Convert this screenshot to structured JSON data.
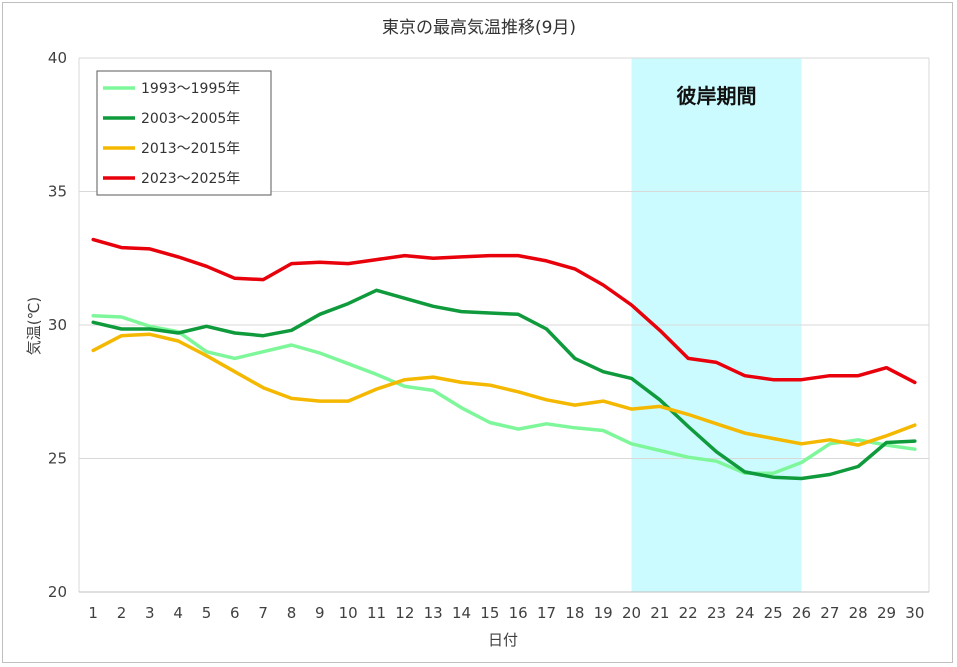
{
  "chart_data": {
    "type": "line",
    "title": "東京の最高気温推移(9月)",
    "xlabel": "日付",
    "ylabel": "気温(℃)",
    "x": [
      1,
      2,
      3,
      4,
      5,
      6,
      7,
      8,
      9,
      10,
      11,
      12,
      13,
      14,
      15,
      16,
      17,
      18,
      19,
      20,
      21,
      22,
      23,
      24,
      25,
      26,
      27,
      28,
      29,
      30
    ],
    "ylim": [
      20,
      40
    ],
    "yticks": [
      20,
      25,
      30,
      35,
      40
    ],
    "grid": true,
    "legend_position": "top-left",
    "highlight": {
      "label": "彼岸期間",
      "x_from": 20,
      "x_to": 26,
      "color": "#ccfbff"
    },
    "series": [
      {
        "name": "1993～1995年",
        "color": "#7ef79a",
        "values": [
          30.35,
          30.3,
          29.95,
          29.75,
          29.0,
          28.75,
          29.0,
          29.25,
          28.95,
          28.55,
          28.15,
          27.7,
          27.55,
          26.9,
          26.35,
          26.1,
          26.3,
          26.15,
          26.05,
          25.55,
          25.3,
          25.05,
          24.9,
          24.45,
          24.45,
          24.85,
          25.55,
          25.7,
          25.5,
          25.35
        ]
      },
      {
        "name": "2003～2005年",
        "color": "#0f9a3c",
        "values": [
          30.1,
          29.85,
          29.85,
          29.7,
          29.95,
          29.7,
          29.6,
          29.8,
          30.4,
          30.8,
          31.3,
          31.0,
          30.7,
          30.5,
          30.45,
          30.4,
          29.85,
          28.75,
          28.25,
          28.0,
          27.2,
          26.2,
          25.25,
          24.5,
          24.3,
          24.25,
          24.4,
          24.7,
          25.6,
          25.65
        ]
      },
      {
        "name": "2013～2015年",
        "color": "#f5b800",
        "values": [
          29.05,
          29.6,
          29.65,
          29.4,
          28.85,
          28.25,
          27.65,
          27.25,
          27.15,
          27.15,
          27.6,
          27.95,
          28.05,
          27.85,
          27.75,
          27.5,
          27.2,
          27.0,
          27.15,
          26.85,
          26.95,
          26.65,
          26.3,
          25.95,
          25.75,
          25.55,
          25.7,
          25.5,
          25.85,
          26.25
        ]
      },
      {
        "name": "2023～2025年",
        "color": "#e8000b",
        "values": [
          33.2,
          32.9,
          32.85,
          32.55,
          32.2,
          31.75,
          31.7,
          32.3,
          32.35,
          32.3,
          32.45,
          32.6,
          32.5,
          32.55,
          32.6,
          32.6,
          32.4,
          32.1,
          31.5,
          30.75,
          29.8,
          28.75,
          28.6,
          28.1,
          27.95,
          27.95,
          28.1,
          28.1,
          28.4,
          27.85
        ]
      }
    ]
  }
}
